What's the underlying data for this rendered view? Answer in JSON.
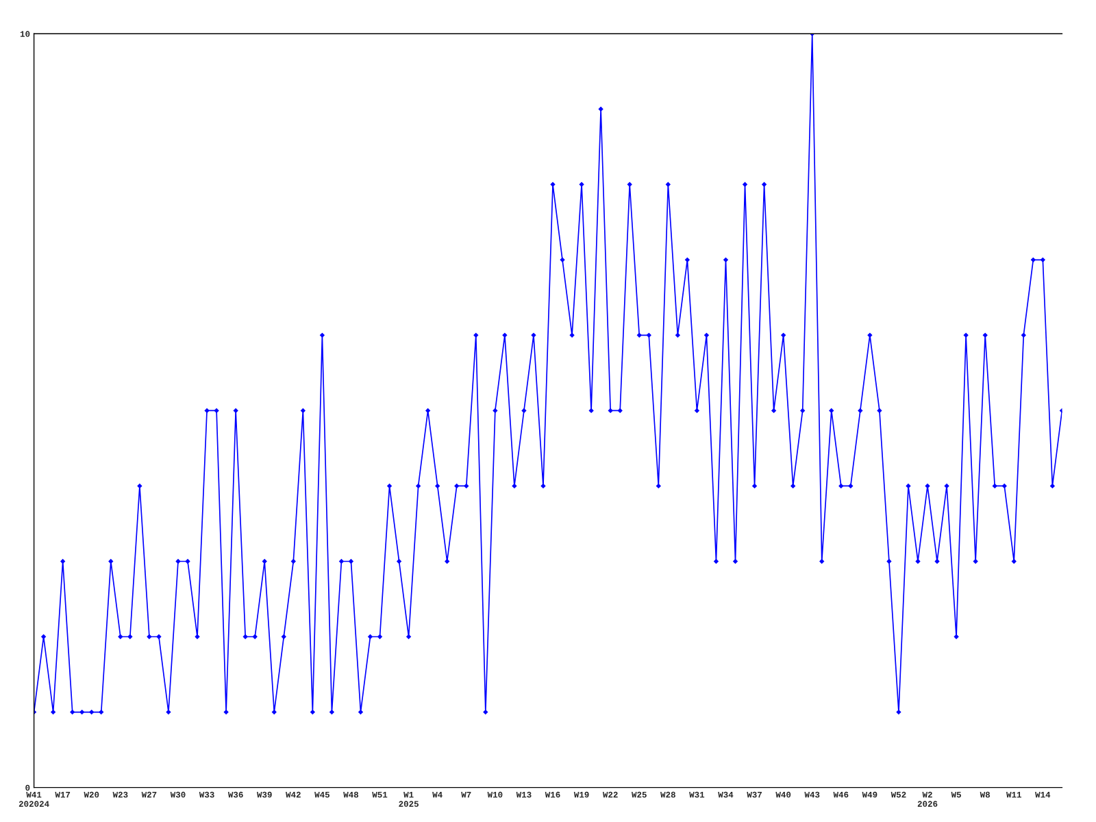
{
  "chart_data": {
    "type": "line",
    "categories": [
      "W41\n202024",
      null,
      null,
      "W17",
      null,
      null,
      "W20",
      null,
      null,
      "W23",
      null,
      null,
      "W27",
      null,
      null,
      "W30",
      null,
      null,
      "W33",
      null,
      null,
      "W36",
      null,
      null,
      "W39",
      null,
      null,
      "W42",
      null,
      null,
      "W45",
      null,
      null,
      "W48",
      null,
      null,
      "W51",
      null,
      null,
      "W1\n2025",
      null,
      null,
      "W4",
      null,
      null,
      "W7",
      null,
      null,
      "W10",
      null,
      null,
      "W13",
      null,
      null,
      "W16",
      null,
      null,
      "W19",
      null,
      null,
      "W22",
      null,
      null,
      "W25",
      null,
      null,
      "W28",
      null,
      null,
      "W31",
      null,
      null,
      "W34",
      null,
      null,
      "W37",
      null,
      null,
      "W40",
      null,
      null,
      "W43",
      null,
      null,
      "W46",
      null,
      null,
      "W49",
      null,
      null,
      "W52",
      null,
      null,
      "W2\n2026",
      null,
      null,
      "W5",
      null,
      null,
      "W8",
      null,
      null,
      "W11",
      null,
      null,
      "W14",
      null,
      null
    ],
    "series": [
      {
        "color": "#0000ff",
        "values": [
          1,
          2,
          1,
          3,
          1,
          1,
          1,
          1,
          3,
          2,
          2,
          4,
          2,
          2,
          1,
          3,
          3,
          2,
          5,
          5,
          1,
          5,
          2,
          2,
          3,
          1,
          2,
          3,
          5,
          1,
          6,
          1,
          3,
          3,
          1,
          2,
          2,
          4,
          3,
          2,
          4,
          5,
          4,
          3,
          4,
          4,
          6,
          1,
          5,
          6,
          4,
          5,
          6,
          4,
          8,
          7,
          6,
          8,
          5,
          9,
          5,
          5,
          8,
          6,
          6,
          4,
          8,
          6,
          7,
          5,
          6,
          3,
          7,
          3,
          8,
          4,
          8,
          5,
          6,
          4,
          5,
          10,
          3,
          5,
          4,
          4,
          5,
          6,
          5,
          3,
          1,
          4,
          3,
          4,
          3,
          4,
          2,
          6,
          3,
          6,
          4,
          4,
          3,
          6,
          7,
          7,
          4,
          5
        ]
      }
    ],
    "ylim": [
      0,
      10
    ],
    "yticks": [
      0,
      10
    ],
    "marker": "diamond",
    "line_style": "solid"
  }
}
